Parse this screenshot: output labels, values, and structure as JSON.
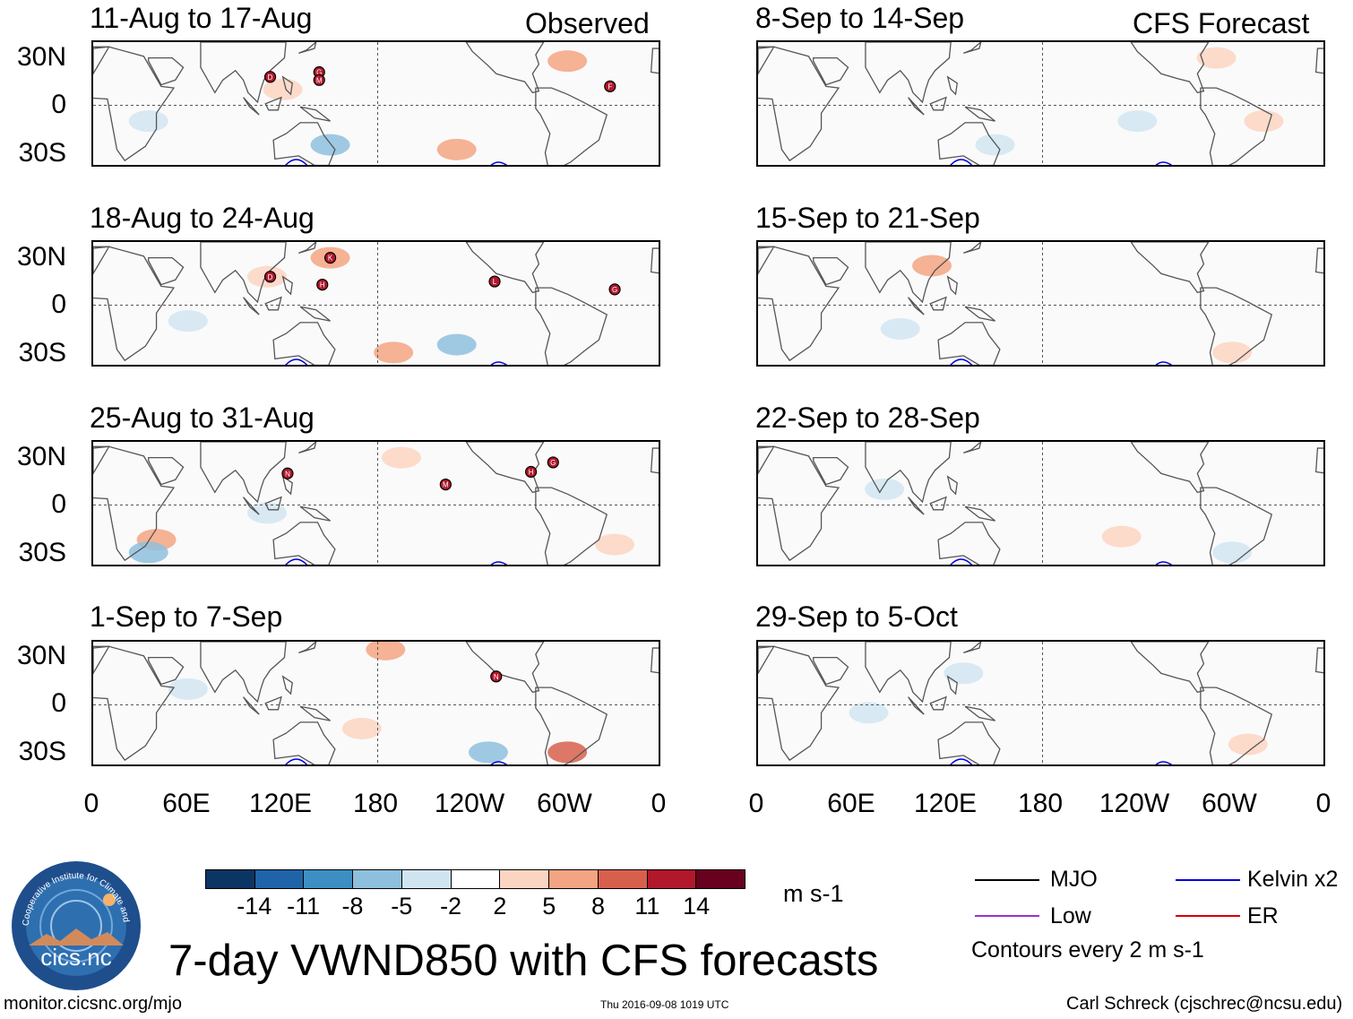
{
  "observed_label": "Observed",
  "forecast_label": "CFS Forecast",
  "panels": [
    {
      "title": "11-Aug to 17-Aug"
    },
    {
      "title": "18-Aug to 24-Aug"
    },
    {
      "title": "25-Aug to 31-Aug"
    },
    {
      "title": "1-Sep to 7-Sep"
    },
    {
      "title": "8-Sep to 14-Sep"
    },
    {
      "title": "15-Sep to 21-Sep"
    },
    {
      "title": "22-Sep to 28-Sep"
    },
    {
      "title": "29-Sep to 5-Oct"
    }
  ],
  "lat_labels": [
    "30N",
    "0",
    "30S"
  ],
  "lon_labels": [
    "0",
    "60E",
    "120E",
    "180",
    "120W",
    "60W",
    "0"
  ],
  "storms": [
    [
      "D",
      "G",
      "M",
      "F"
    ],
    [
      "D",
      "K",
      "H",
      "L",
      "G"
    ],
    [
      "N",
      "M",
      "H",
      "G"
    ],
    [
      "N"
    ]
  ],
  "colorbar": {
    "colors": [
      "#0b3563",
      "#1f64a8",
      "#3d8ec3",
      "#8ec0de",
      "#d1e5f1",
      "#ffffff",
      "#fbd5c2",
      "#f3a482",
      "#d7604d",
      "#b1182b",
      "#68001f"
    ],
    "labels": [
      "-14",
      "-11",
      "-8",
      "-5",
      "-2",
      "2",
      "5",
      "8",
      "11",
      "14"
    ],
    "units": "m s-1"
  },
  "legend": {
    "items": [
      {
        "label": "MJO",
        "color": "#000000"
      },
      {
        "label": "Kelvin x2",
        "color": "#0000dd"
      },
      {
        "label": "Low",
        "color": "#9a32cd"
      },
      {
        "label": "ER",
        "color": "#dd0000"
      }
    ],
    "note": "Contours every 2 m s-1"
  },
  "main_title": "7-day VWND850 with CFS forecasts",
  "logo_text": "cics.nc",
  "logo_ring": "Cooperative Institute for Climate and Satellites",
  "footer": {
    "url": "monitor.cicsnc.org/mjo",
    "timestamp": "Thu 2016-09-08 1019 UTC",
    "author": "Carl Schreck (cjschrec@ncsu.edu)"
  }
}
